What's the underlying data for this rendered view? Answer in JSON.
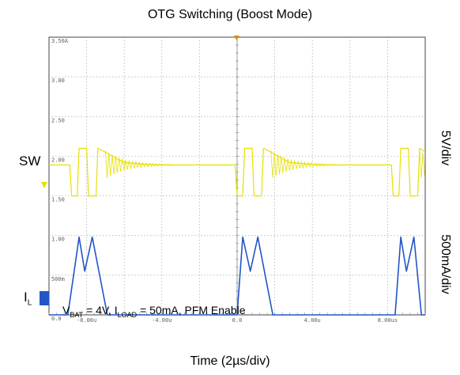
{
  "title": "OTG Switching (Boost Mode)",
  "xlabel": "Time (2µs/div)",
  "channel_labels": {
    "sw": "SW",
    "il_main": "I",
    "il_sub": "L"
  },
  "scale_labels": {
    "voltage": "5V/div",
    "current": "500mA/div"
  },
  "annotation": {
    "v": "V",
    "v_sub": "BAT",
    "v_text": " = 4V, I",
    "i_sub": "LOAD",
    "rest": " = 50mA, PFM Enable"
  },
  "colors": {
    "sw": "#e6e000",
    "il": "#2255c8",
    "grid": "#a8a8a8",
    "frame": "#444444"
  },
  "chart_data": {
    "type": "line",
    "title": "OTG Switching (Boost Mode)",
    "xlabel": "Time (2µs/div)",
    "x_ticks": [
      "-8.00u",
      "-4.00u",
      "0.0",
      "4.00u",
      "8.00us"
    ],
    "y_ticks": [
      "3.50A",
      "3.00",
      "2.50",
      "2.00",
      "1.50",
      "1.00",
      "500m",
      "0.0"
    ],
    "xlim": [
      -10,
      10
    ],
    "ylim": [
      0,
      3.5
    ],
    "grid": true,
    "series": [
      {
        "name": "SW",
        "x": [
          -10,
          -8.9,
          -8.8,
          -8.5,
          -8.4,
          -8.0,
          -7.9,
          -7.5,
          -7.4,
          -7.0,
          -6.0,
          -5.0,
          -4.0,
          -2.0,
          -0.1,
          0.0,
          0.3,
          0.4,
          0.8,
          0.9,
          1.3,
          1.4,
          1.8,
          2.8,
          3.8,
          5.0,
          7.0,
          8.2,
          8.3,
          8.6,
          8.7,
          9.1,
          9.2,
          9.6,
          9.7,
          10
        ],
        "values": [
          1.89,
          1.89,
          1.5,
          1.5,
          2.1,
          2.1,
          1.5,
          1.5,
          2.1,
          2.05,
          1.92,
          1.9,
          1.89,
          1.89,
          1.89,
          1.5,
          1.5,
          2.1,
          2.1,
          1.5,
          1.5,
          2.1,
          2.05,
          1.92,
          1.9,
          1.89,
          1.89,
          1.89,
          1.5,
          1.5,
          2.1,
          2.1,
          1.5,
          1.5,
          2.1,
          2.05
        ]
      },
      {
        "name": "I",
        "x": [
          -10,
          -9.0,
          -8.4,
          -8.1,
          -7.7,
          -6.9,
          -4.0,
          0.0,
          0.3,
          0.7,
          1.1,
          1.9,
          5.0,
          8.4,
          8.7,
          9.0,
          9.4,
          9.8,
          10
        ],
        "values": [
          0.0,
          0.0,
          0.98,
          0.55,
          0.98,
          0.0,
          0.0,
          0.0,
          0.98,
          0.55,
          0.98,
          0.0,
          0.0,
          0.0,
          0.98,
          0.55,
          0.98,
          0.0,
          0.0
        ]
      }
    ]
  }
}
